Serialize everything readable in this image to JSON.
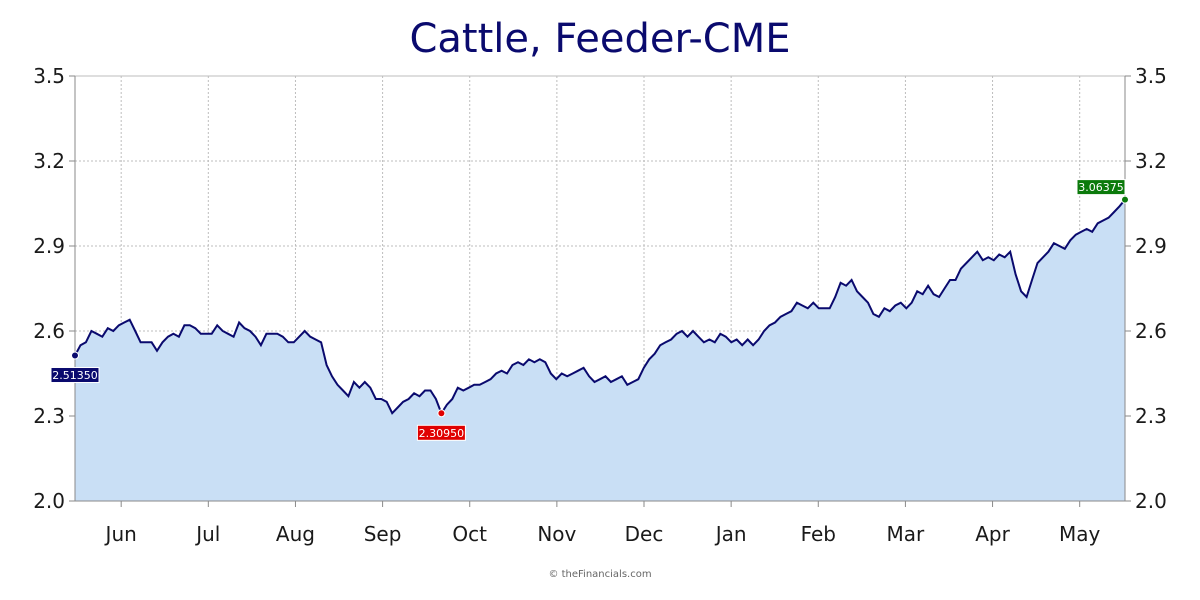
{
  "colors": {
    "line": "#0a0a6e",
    "area": "#c9dff5",
    "grid": "#bdbdbd",
    "start_flag": "#0a0a6e",
    "min_flag": "#e00000",
    "end_flag": "#0b7a0b"
  },
  "credit": "© theFinancials.com",
  "chart_data": {
    "type": "area",
    "title": "Cattle, Feeder-CME",
    "xlabel": "",
    "ylabel": "",
    "ylim": [
      2.0,
      3.5
    ],
    "y_ticks": [
      "2.0",
      "2.3",
      "2.6",
      "2.9",
      "3.2",
      "3.5"
    ],
    "y_axis_sides": "both",
    "x_ticks": [
      "Jun",
      "Jul",
      "Aug",
      "Sep",
      "Oct",
      "Nov",
      "Dec",
      "Jan",
      "Feb",
      "Mar",
      "Apr",
      "May"
    ],
    "grid": true,
    "annotations": [
      {
        "label": "2.51350",
        "kind": "start",
        "value": 2.5135
      },
      {
        "label": "2.30950",
        "kind": "min",
        "value": 2.3095
      },
      {
        "label": "3.06375",
        "kind": "end",
        "value": 3.06375
      }
    ],
    "series": [
      {
        "values": [
          2.5135,
          2.55,
          2.56,
          2.6,
          2.59,
          2.58,
          2.61,
          2.6,
          2.62,
          2.63,
          2.64,
          2.6,
          2.56,
          2.56,
          2.56,
          2.53,
          2.56,
          2.58,
          2.59,
          2.58,
          2.62,
          2.62,
          2.61,
          2.59,
          2.59,
          2.59,
          2.62,
          2.6,
          2.59,
          2.58,
          2.63,
          2.61,
          2.6,
          2.58,
          2.55,
          2.59,
          2.59,
          2.59,
          2.58,
          2.56,
          2.56,
          2.58,
          2.6,
          2.58,
          2.57,
          2.56,
          2.48,
          2.44,
          2.41,
          2.39,
          2.37,
          2.42,
          2.4,
          2.42,
          2.4,
          2.36,
          2.36,
          2.35,
          2.31,
          2.33,
          2.35,
          2.36,
          2.38,
          2.37,
          2.39,
          2.39,
          2.36,
          2.3095,
          2.34,
          2.36,
          2.4,
          2.39,
          2.4,
          2.41,
          2.41,
          2.42,
          2.43,
          2.45,
          2.46,
          2.45,
          2.48,
          2.49,
          2.48,
          2.5,
          2.49,
          2.5,
          2.49,
          2.45,
          2.43,
          2.45,
          2.44,
          2.45,
          2.46,
          2.47,
          2.44,
          2.42,
          2.43,
          2.44,
          2.42,
          2.43,
          2.44,
          2.41,
          2.42,
          2.43,
          2.47,
          2.5,
          2.52,
          2.55,
          2.56,
          2.57,
          2.59,
          2.6,
          2.58,
          2.6,
          2.58,
          2.56,
          2.57,
          2.56,
          2.59,
          2.58,
          2.56,
          2.57,
          2.55,
          2.57,
          2.55,
          2.57,
          2.6,
          2.62,
          2.63,
          2.65,
          2.66,
          2.67,
          2.7,
          2.69,
          2.68,
          2.7,
          2.68,
          2.68,
          2.68,
          2.72,
          2.77,
          2.76,
          2.78,
          2.74,
          2.72,
          2.7,
          2.66,
          2.65,
          2.68,
          2.67,
          2.69,
          2.7,
          2.68,
          2.7,
          2.74,
          2.73,
          2.76,
          2.73,
          2.72,
          2.75,
          2.78,
          2.78,
          2.82,
          2.84,
          2.86,
          2.88,
          2.85,
          2.86,
          2.85,
          2.87,
          2.86,
          2.88,
          2.8,
          2.74,
          2.72,
          2.78,
          2.84,
          2.86,
          2.88,
          2.91,
          2.9,
          2.89,
          2.92,
          2.94,
          2.95,
          2.96,
          2.95,
          2.98,
          2.99,
          3.0,
          3.02,
          3.04,
          3.06375
        ]
      }
    ]
  }
}
